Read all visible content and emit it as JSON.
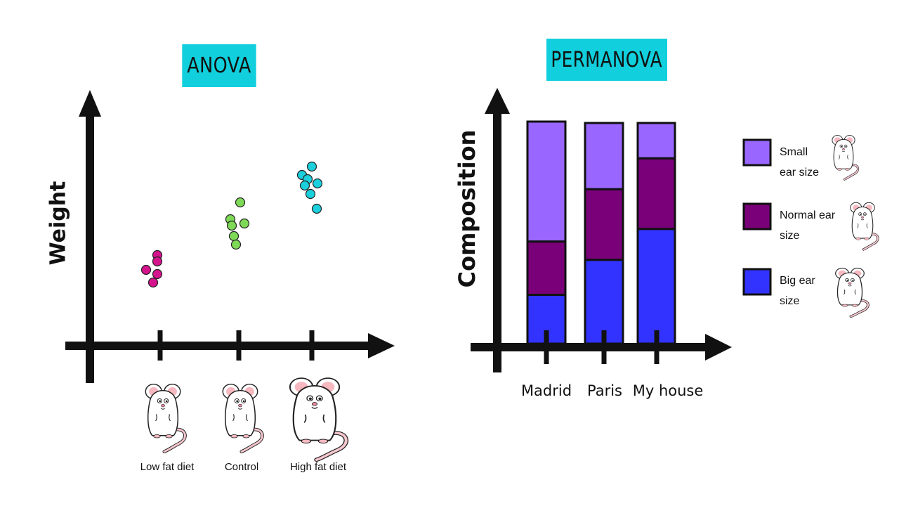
{
  "anova": {
    "title": "ANOVA",
    "y_label": "Weight",
    "groups": [
      {
        "label": "Low fat diet",
        "color": "#d4148c"
      },
      {
        "label": "Control",
        "color": "#7ed957"
      },
      {
        "label": "High fat diet",
        "color": "#1ccfdc"
      }
    ]
  },
  "permanova": {
    "title": "PERMANOVA",
    "y_label": "Composition",
    "categories": [
      "Madrid",
      "Paris",
      "My house"
    ],
    "legend": [
      {
        "label_line1": "Small",
        "label_line2": "ear size",
        "color": "#9966ff"
      },
      {
        "label_line1": "Normal ear",
        "label_line2": "size",
        "color": "#7a007a"
      },
      {
        "label_line1": "Big ear",
        "label_line2": "size",
        "color": "#3333ff"
      }
    ]
  },
  "chart_data": [
    {
      "type": "scatter",
      "title": "ANOVA",
      "ylabel": "Weight",
      "categories": [
        "Low fat diet",
        "Control",
        "High fat diet"
      ],
      "series": [
        {
          "name": "Low fat diet",
          "x": [
            0,
            0,
            0,
            0,
            0
          ],
          "y": [
            3.9,
            3.6,
            3.2,
            3.0,
            2.6
          ]
        },
        {
          "name": "Control",
          "x": [
            1,
            1,
            1,
            1,
            1,
            1
          ],
          "y": [
            6.4,
            5.6,
            5.4,
            5.3,
            4.8,
            4.4
          ]
        },
        {
          "name": "High fat diet",
          "x": [
            2,
            2,
            2,
            2,
            2,
            2,
            2
          ],
          "y": [
            8.1,
            7.7,
            7.5,
            7.3,
            7.2,
            6.8,
            6.1
          ]
        }
      ],
      "ylim": [
        0,
        10
      ]
    },
    {
      "type": "bar",
      "stacked": true,
      "title": "PERMANOVA",
      "ylabel": "Composition",
      "categories": [
        "Madrid",
        "Paris",
        "My house"
      ],
      "series": [
        {
          "name": "Big ear size",
          "values": [
            0.22,
            0.38,
            0.52
          ]
        },
        {
          "name": "Normal ear size",
          "values": [
            0.24,
            0.32,
            0.32
          ]
        },
        {
          "name": "Small ear size",
          "values": [
            0.54,
            0.3,
            0.16
          ]
        }
      ],
      "ylim": [
        0,
        1
      ]
    }
  ]
}
